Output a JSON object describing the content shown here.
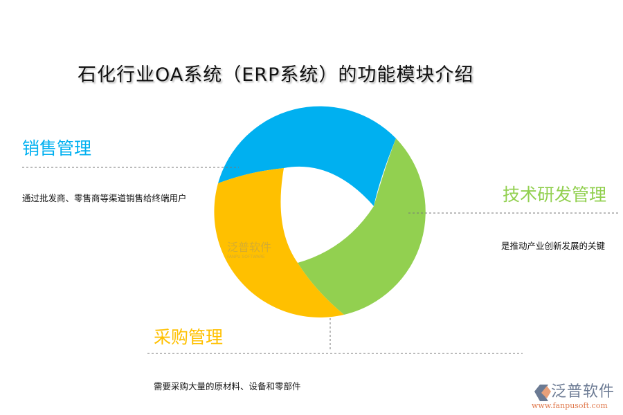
{
  "title": "石化行业OA系统（ERP系统）的功能模块介绍",
  "sections": [
    {
      "name": "销售管理",
      "desc": "通过批发商、零售商等渠道销售给终端用户",
      "color": "#00b0f0"
    },
    {
      "name": "技术研发管理",
      "desc": "是推动产业创新发展的关键",
      "color": "#92d050"
    },
    {
      "name": "采购管理",
      "desc": "需要采购大量的原材料、设备和零部件",
      "color": "#ffc000"
    }
  ],
  "watermark": {
    "cn": "泛普软件",
    "en": "FANPU SOFTWARE"
  },
  "logo": {
    "cn": "泛普软件",
    "url": "www.fanpusoft.com"
  }
}
